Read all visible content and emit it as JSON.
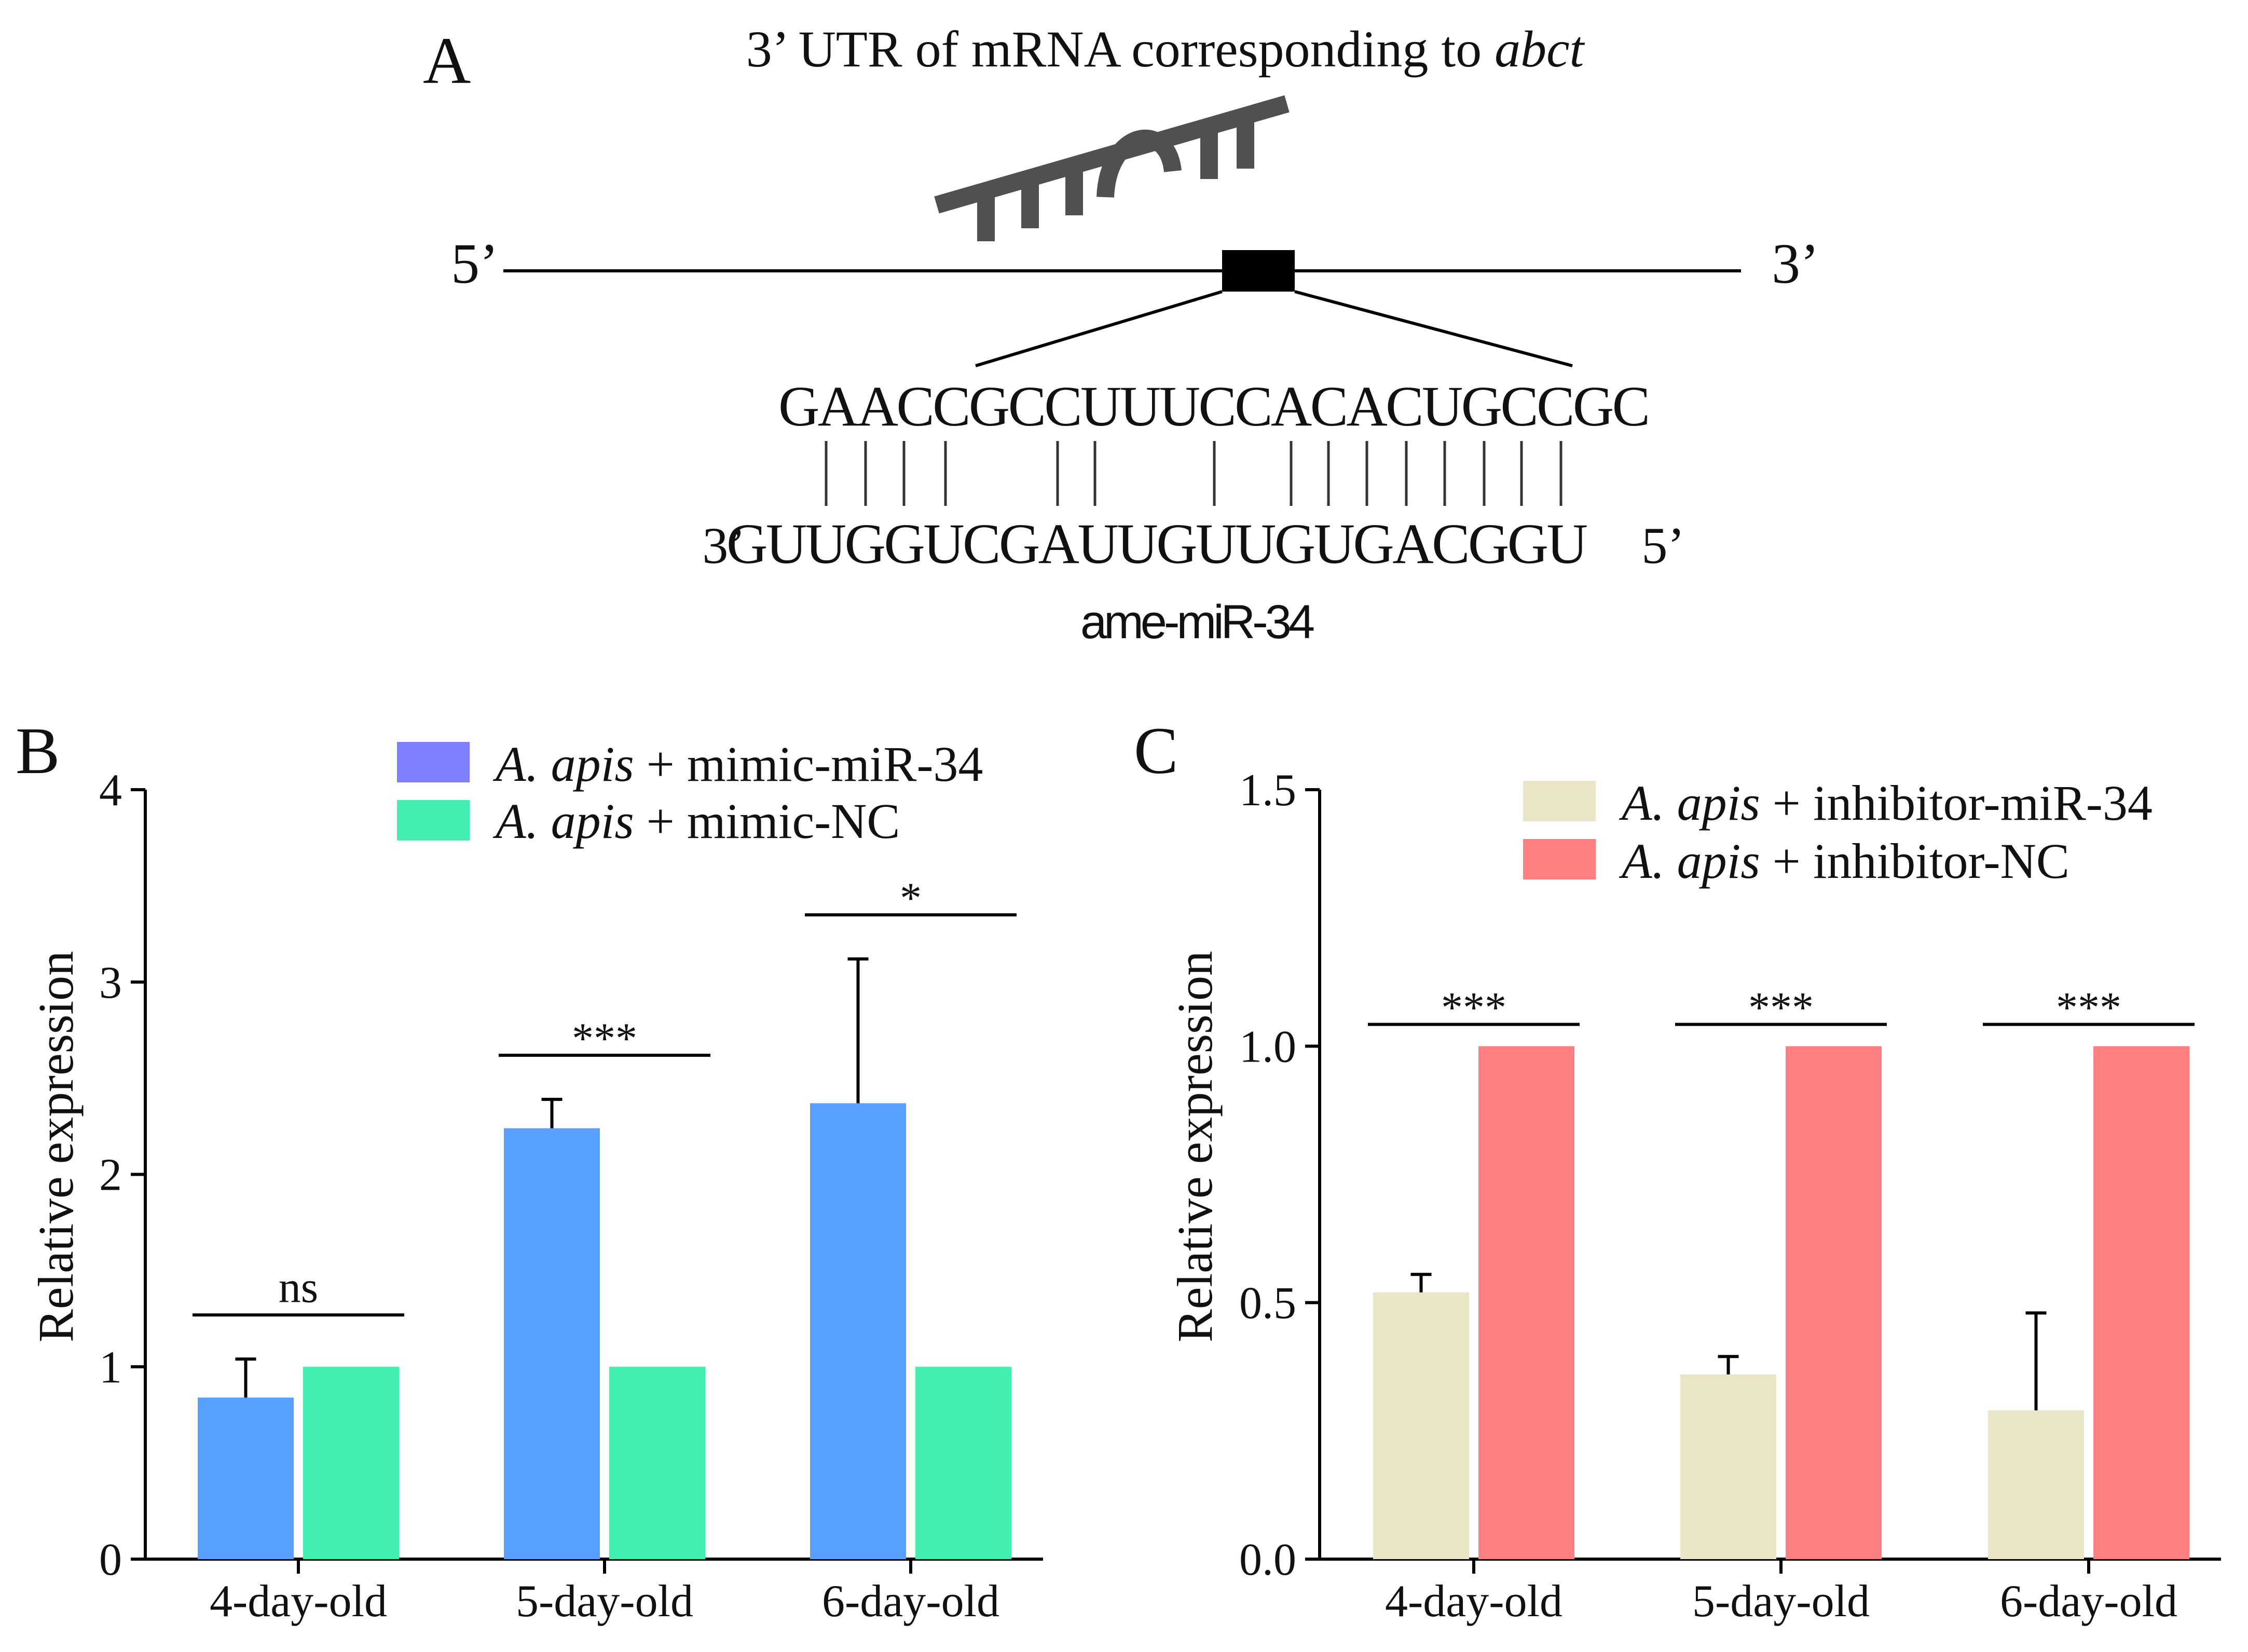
{
  "panel_a": {
    "letter": "A",
    "title_prefix": "3’ UTR of mRNA corresponding to ",
    "title_gene": "abct",
    "five_prime": "5’",
    "three_prime": "3’",
    "target_sequence": "GAACCGCCUUUCCACACUGCCGC",
    "mirna_3prime": "3’",
    "mirna_sequence": "GUUGGUCGAUUGUUGUGACGGU",
    "mirna_5prime": "5’",
    "mirna_name": "ame-miR-34",
    "colors": {
      "hairpin": "#505050",
      "site_box": "#000000"
    }
  },
  "chart_data": [
    {
      "panel": "B",
      "type": "bar",
      "categories": [
        "4-day-old",
        "5-day-old",
        "6-day-old"
      ],
      "series": [
        {
          "name_italic": "A. apis",
          "name_rest": " + mimic-miR-34",
          "color": "#57a0ff",
          "values": [
            0.84,
            2.24,
            2.37
          ],
          "errors": [
            0.2,
            0.15,
            0.75
          ]
        },
        {
          "name_italic": "A. apis",
          "name_rest": " + mimic-NC",
          "color": "#43efb0",
          "values": [
            1.0,
            1.0,
            1.0
          ]
        }
      ],
      "legend_swatch_colors": [
        "#8080ff",
        "#43efb0"
      ],
      "significance": [
        "ns",
        "***",
        "*"
      ],
      "ylabel": "Relative expression",
      "ylim": [
        0,
        4
      ],
      "yticks": [
        "0",
        "1",
        "2",
        "3",
        "4"
      ],
      "legend_position": "top-right"
    },
    {
      "panel": "C",
      "type": "bar",
      "categories": [
        "4-day-old",
        "5-day-old",
        "6-day-old"
      ],
      "series": [
        {
          "name_italic": "A. apis",
          "name_rest": " + inhibitor-miR-34",
          "color": "#ebe5c8",
          "values": [
            0.52,
            0.36,
            0.29
          ],
          "errors": [
            0.035,
            0.035,
            0.19
          ]
        },
        {
          "name_italic": "A. apis",
          "name_rest": " + inhibitor-NC",
          "color": "#ff8080",
          "values": [
            1.0,
            1.0,
            1.0
          ]
        }
      ],
      "significance": [
        "***",
        "***",
        "***"
      ],
      "ylabel": "Relative expression",
      "ylim": [
        0,
        1.5
      ],
      "yticks": [
        "0.0",
        "0.5",
        "1.0",
        "1.5"
      ],
      "legend_position": "top-right"
    }
  ]
}
